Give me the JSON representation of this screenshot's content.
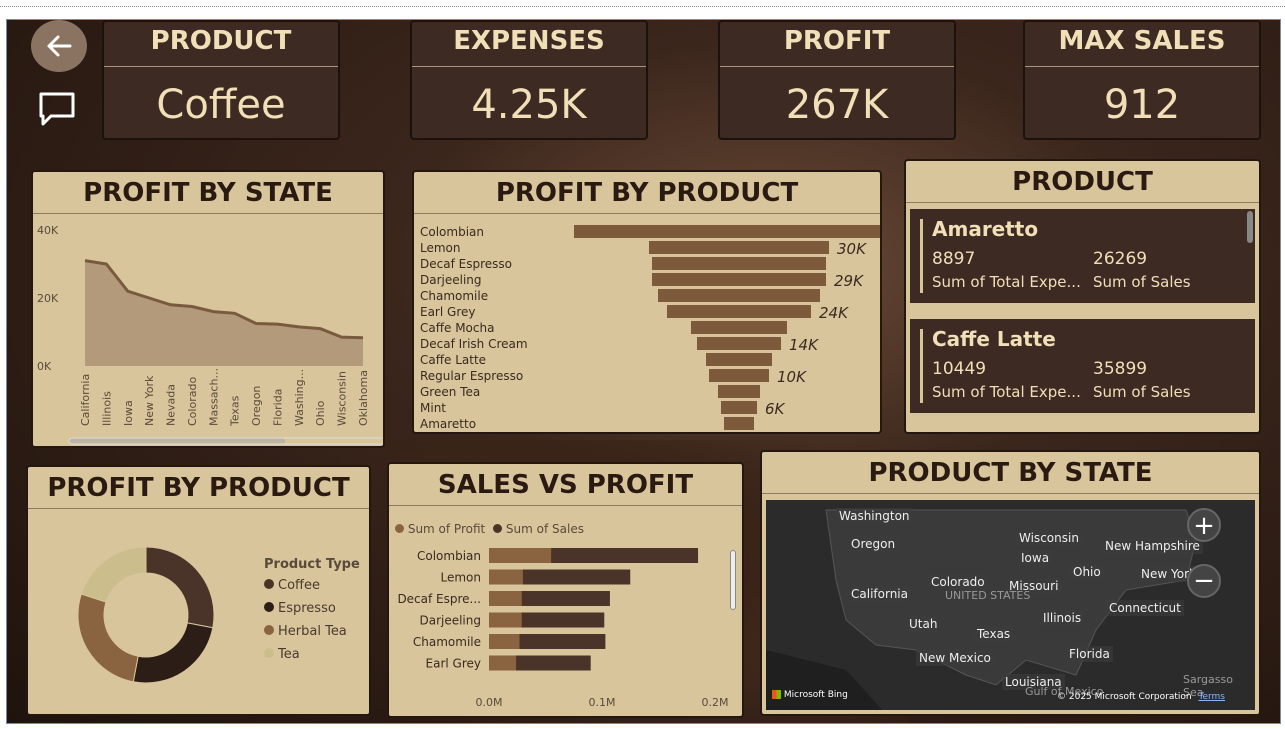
{
  "nav": {
    "back_icon": "arrow-left-icon",
    "comment_icon": "comment-icon"
  },
  "kpis": [
    {
      "label": "PRODUCT",
      "value": "Coffee"
    },
    {
      "label": "EXPENSES",
      "value": "4.25K"
    },
    {
      "label": "PROFIT",
      "value": "267K"
    },
    {
      "label": "MAX SALES",
      "value": "912"
    }
  ],
  "profit_by_state": {
    "title": "PROFIT BY STATE",
    "y_ticks": [
      "40K",
      "20K",
      "0K"
    ]
  },
  "profit_by_product_funnel": {
    "title": "PROFIT BY PRODUCT",
    "labels": [
      "30K",
      "29K",
      "24K",
      "14K",
      "10K",
      "6K"
    ]
  },
  "product_list": {
    "title": "PRODUCT",
    "cards": [
      {
        "name": "Amaretto",
        "expenses": "8897",
        "sales": "26269",
        "expenses_label": "Sum of Total Expe...",
        "sales_label": "Sum of Sales"
      },
      {
        "name": "Caffe Latte",
        "expenses": "10449",
        "sales": "35899",
        "expenses_label": "Sum of Total Expe...",
        "sales_label": "Sum of Sales"
      }
    ]
  },
  "donut": {
    "title": "PROFIT BY PRODUCT",
    "legend_title": "Product Type",
    "items": [
      {
        "name": "Coffee",
        "color": "#4a3328"
      },
      {
        "name": "Espresso",
        "color": "#2c1d17"
      },
      {
        "name": "Herbal Tea",
        "color": "#8a6440"
      },
      {
        "name": "Tea",
        "color": "#cbbd8c"
      }
    ]
  },
  "sales_vs_profit": {
    "title": "SALES VS PROFIT",
    "legend": [
      "Sum of Profit",
      "Sum of Sales"
    ],
    "x_ticks": [
      "0.0M",
      "0.1M",
      "0.2M"
    ]
  },
  "map": {
    "title": "PRODUCT BY STATE",
    "labels": [
      "Washington",
      "Oregon",
      "California",
      "Utah",
      "Colorado",
      "Texas",
      "New Mexico",
      "Wisconsin",
      "Iowa",
      "Missouri",
      "Illinois",
      "Ohio",
      "New Hampshire",
      "New York",
      "Connecticut",
      "Florida",
      "Louisiana",
      "UNITED STATES",
      "Sargasso Sea",
      "Gulf of Mexico"
    ],
    "bing": "Microsoft Bing",
    "copyright": "© 2025 Microsoft Corporation",
    "terms": "Terms",
    "zoom_in": "+",
    "zoom_out": "−"
  },
  "chart_data": [
    {
      "type": "area",
      "title": "PROFIT BY STATE",
      "categories": [
        "California",
        "Illinois",
        "Iowa",
        "New York",
        "Nevada",
        "Colorado",
        "Massach...",
        "Texas",
        "Oregon",
        "Florida",
        "Washing...",
        "Ohio",
        "Wisconsin",
        "Oklahoma"
      ],
      "values": [
        31000,
        30000,
        22000,
        20000,
        18000,
        17500,
        16000,
        15500,
        12500,
        12300,
        11500,
        11000,
        8500,
        8300
      ],
      "ylim": [
        0,
        40000
      ]
    },
    {
      "type": "bar",
      "title": "PROFIT BY PRODUCT",
      "categories": [
        "Colombian",
        "Lemon",
        "Decaf Espresso",
        "Darjeeling",
        "Chamomile",
        "Earl Grey",
        "Caffe Mocha",
        "Decaf Irish Cream",
        "Caffe Latte",
        "Regular Espresso",
        "Green Tea",
        "Mint",
        "Amaretto"
      ],
      "values": [
        55000,
        30000,
        29000,
        29000,
        27000,
        24000,
        16000,
        14000,
        11000,
        10000,
        7000,
        6000,
        5000
      ]
    },
    {
      "type": "pie",
      "title": "PROFIT BY PRODUCT",
      "categories": [
        "Coffee",
        "Espresso",
        "Herbal Tea",
        "Tea"
      ],
      "values": [
        28,
        25,
        27,
        20
      ]
    },
    {
      "type": "bar",
      "title": "SALES VS PROFIT",
      "categories": [
        "Colombian",
        "Lemon",
        "Decaf Espre...",
        "Darjeeling",
        "Chamomile",
        "Earl Grey"
      ],
      "series": [
        {
          "name": "Sum of Profit",
          "values": [
            55000,
            30000,
            29000,
            29000,
            27000,
            24000
          ]
        },
        {
          "name": "Sum of Sales",
          "values": [
            185000,
            125000,
            107000,
            102000,
            103000,
            90000
          ]
        }
      ],
      "xlim": [
        0,
        200000
      ]
    }
  ]
}
